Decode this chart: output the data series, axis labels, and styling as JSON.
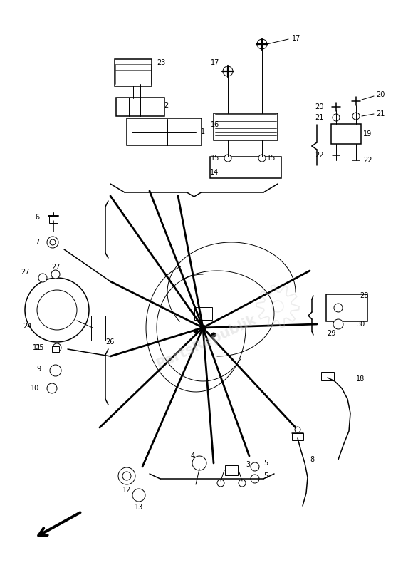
{
  "bg_color": "#ffffff",
  "line_color": "#000000",
  "lw_thin": 0.7,
  "lw_med": 1.1,
  "lw_thick": 2.0,
  "figw": 5.8,
  "figh": 8.0,
  "dpi": 100
}
